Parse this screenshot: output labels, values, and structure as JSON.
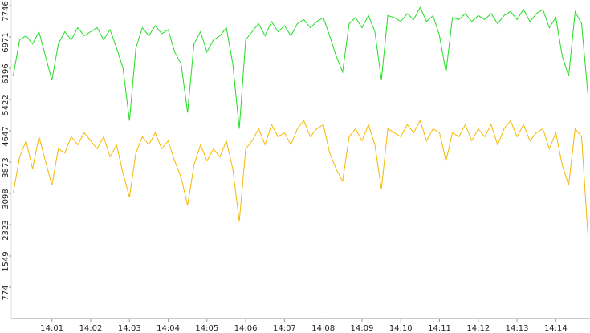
{
  "chart_data": {
    "type": "line",
    "x": [
      0,
      10,
      20,
      30,
      40,
      50,
      60,
      70,
      80,
      90,
      100,
      110,
      120,
      130,
      140,
      150,
      160,
      170,
      180,
      190,
      200,
      210,
      220,
      230,
      240,
      250,
      260,
      270,
      280,
      290,
      300,
      310,
      320,
      330,
      340,
      350,
      360,
      370,
      380,
      390,
      400,
      410,
      420,
      430,
      440,
      450,
      460,
      470,
      480,
      490,
      500,
      510,
      520,
      530,
      540,
      550,
      560,
      570,
      580,
      590,
      600,
      610,
      620,
      630,
      640,
      650,
      660,
      670,
      680,
      690,
      700,
      710,
      720,
      730,
      740,
      750,
      760,
      770,
      780,
      790,
      800,
      810,
      820,
      830,
      840,
      850,
      860,
      870,
      880,
      890
    ],
    "series": [
      {
        "color": "#22dd22",
        "values": [
          6000,
          6900,
          7000,
          6800,
          7100,
          6500,
          5900,
          6800,
          7100,
          6900,
          7200,
          7000,
          7100,
          7200,
          6900,
          7150,
          6700,
          6200,
          4900,
          6700,
          7200,
          7000,
          7250,
          7050,
          7150,
          6600,
          6300,
          5100,
          6800,
          7100,
          6600,
          6900,
          7000,
          7200,
          6300,
          4700,
          6900,
          7100,
          7300,
          7000,
          7350,
          7100,
          7250,
          7000,
          7300,
          7400,
          7200,
          7350,
          7450,
          7000,
          6500,
          6100,
          7300,
          7450,
          7200,
          7500,
          7100,
          5900,
          7500,
          7450,
          7350,
          7550,
          7400,
          7700,
          7350,
          7500,
          7000,
          6100,
          7450,
          7400,
          7550,
          7350,
          7500,
          7400,
          7550,
          7300,
          7500,
          7600,
          7400,
          7650,
          7350,
          7550,
          7650,
          7200,
          7450,
          6500,
          6000,
          7600,
          7300,
          5500
        ]
      },
      {
        "color": "#f5b800",
        "values": [
          3100,
          4000,
          4400,
          3700,
          4500,
          3900,
          3300,
          4200,
          4100,
          4500,
          4300,
          4600,
          4400,
          4200,
          4500,
          4000,
          4300,
          3600,
          3000,
          4100,
          4500,
          4300,
          4600,
          4200,
          4400,
          3900,
          3500,
          2800,
          3800,
          4300,
          3900,
          4200,
          4000,
          4400,
          3700,
          2400,
          4200,
          4400,
          4700,
          4300,
          4800,
          4500,
          4600,
          4300,
          4700,
          4900,
          4500,
          4700,
          4800,
          4100,
          3700,
          3400,
          4500,
          4700,
          4400,
          4800,
          4300,
          3200,
          4700,
          4600,
          4500,
          4800,
          4600,
          4900,
          4400,
          4700,
          4600,
          3900,
          4600,
          4500,
          4800,
          4400,
          4700,
          4500,
          4800,
          4300,
          4700,
          4900,
          4500,
          4800,
          4400,
          4600,
          4700,
          4200,
          4600,
          3800,
          3300,
          4700,
          4500,
          2000
        ]
      }
    ],
    "xlim": [
      -3,
      893
    ],
    "xticks": [
      {
        "value": 60,
        "label": "14:01"
      },
      {
        "value": 120,
        "label": "14:02"
      },
      {
        "value": 180,
        "label": "14:03"
      },
      {
        "value": 240,
        "label": "14:04"
      },
      {
        "value": 300,
        "label": "14:05"
      },
      {
        "value": 360,
        "label": "14:06"
      },
      {
        "value": 420,
        "label": "14:07"
      },
      {
        "value": 480,
        "label": "14:08"
      },
      {
        "value": 540,
        "label": "14:09"
      },
      {
        "value": 600,
        "label": "14:10"
      },
      {
        "value": 660,
        "label": "14:11"
      },
      {
        "value": 720,
        "label": "14:12"
      },
      {
        "value": 780,
        "label": "14:13"
      },
      {
        "value": 840,
        "label": "14:14"
      }
    ],
    "ylim": [
      0,
      7746
    ],
    "yticks": [
      774,
      1549,
      2323,
      3098,
      3873,
      4647,
      5422,
      6196,
      6971,
      7746
    ]
  }
}
